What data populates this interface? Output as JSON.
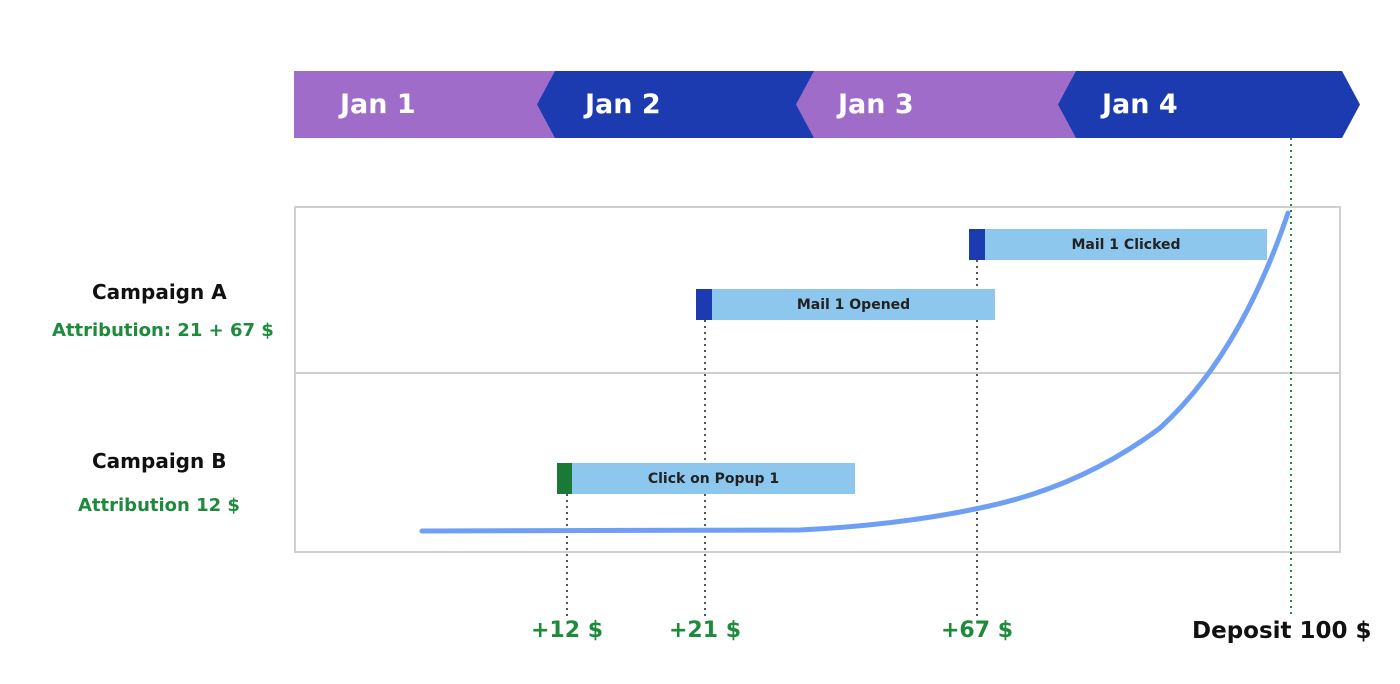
{
  "timeline": {
    "days": [
      "Jan 1",
      "Jan 2",
      "Jan 3",
      "Jan 4"
    ],
    "colors": {
      "light": "#a06cc9",
      "dark": "#1d3bb1"
    }
  },
  "campaigns": [
    {
      "name": "Campaign A",
      "attribution": "Attribution: 21 + 67 $"
    },
    {
      "name": "Campaign B",
      "attribution": "Attribution 12 $"
    }
  ],
  "events": [
    {
      "label": "Mail 1 Clicked",
      "marker_color": "#1d3bb1"
    },
    {
      "label": "Mail 1 Opened",
      "marker_color": "#1d3bb1"
    },
    {
      "label": "Click on Popup 1",
      "marker_color": "#1a7a35"
    }
  ],
  "increments": [
    "+12 $",
    "+21 $",
    "+67 $"
  ],
  "deposit": "Deposit 100 $",
  "colors": {
    "bar": "#8ec7ee",
    "curve": "#6f9ff5",
    "money": "#1e8a3c"
  }
}
